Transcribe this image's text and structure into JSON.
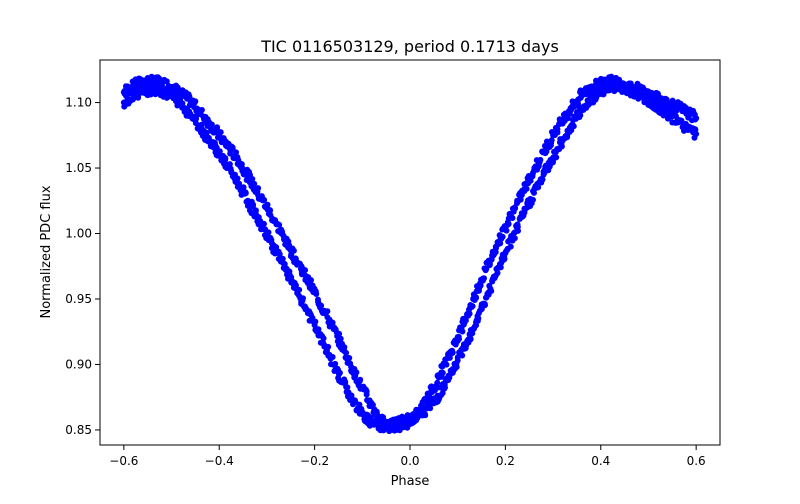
{
  "chart_data": {
    "type": "scatter",
    "title": "TIC 0116503129, period 0.1713 days",
    "xlabel": "Phase",
    "ylabel": "Normalized PDC flux",
    "xlim": [
      -0.65,
      0.65
    ],
    "ylim": [
      0.8385,
      1.1325
    ],
    "x_ticks": [
      -0.6,
      -0.4,
      -0.2,
      0.0,
      0.2,
      0.4,
      0.6
    ],
    "x_tick_labels": [
      "−0.6",
      "−0.4",
      "−0.2",
      "0.0",
      "0.2",
      "0.4",
      "0.6"
    ],
    "y_ticks": [
      0.85,
      0.9,
      0.95,
      1.0,
      1.05,
      1.1
    ],
    "y_tick_labels": [
      "0.85",
      "0.90",
      "0.95",
      "1.00",
      "1.05",
      "1.10"
    ],
    "grid": false,
    "legend": "none",
    "series": [
      {
        "color": "#0000ff",
        "marker": "circle",
        "points": [
          [
            -0.6,
            1.108
          ],
          [
            -0.58,
            1.113
          ],
          [
            -0.56,
            1.116
          ],
          [
            -0.54,
            1.116
          ],
          [
            -0.52,
            1.115
          ],
          [
            -0.5,
            1.112
          ],
          [
            -0.48,
            1.107
          ],
          [
            -0.46,
            1.101
          ],
          [
            -0.44,
            1.093
          ],
          [
            -0.42,
            1.084
          ],
          [
            -0.4,
            1.075
          ],
          [
            -0.38,
            1.066
          ],
          [
            -0.36,
            1.056
          ],
          [
            -0.34,
            1.044
          ],
          [
            -0.32,
            1.032
          ],
          [
            -0.3,
            1.02
          ],
          [
            -0.28,
            1.007
          ],
          [
            -0.26,
            0.994
          ],
          [
            -0.24,
            0.981
          ],
          [
            -0.22,
            0.968
          ],
          [
            -0.2,
            0.955
          ],
          [
            -0.18,
            0.941
          ],
          [
            -0.16,
            0.927
          ],
          [
            -0.14,
            0.912
          ],
          [
            -0.12,
            0.896
          ],
          [
            -0.1,
            0.882
          ],
          [
            -0.08,
            0.868
          ],
          [
            -0.06,
            0.857
          ],
          [
            -0.04,
            0.852
          ],
          [
            -0.02,
            0.853
          ],
          [
            0.0,
            0.857
          ],
          [
            0.02,
            0.864
          ],
          [
            0.04,
            0.876
          ],
          [
            0.06,
            0.89
          ],
          [
            0.08,
            0.905
          ],
          [
            0.1,
            0.921
          ],
          [
            0.12,
            0.938
          ],
          [
            0.14,
            0.956
          ],
          [
            0.16,
            0.973
          ],
          [
            0.18,
            0.99
          ],
          [
            0.2,
            1.005
          ],
          [
            0.22,
            1.02
          ],
          [
            0.24,
            1.034
          ],
          [
            0.26,
            1.048
          ],
          [
            0.28,
            1.062
          ],
          [
            0.3,
            1.075
          ],
          [
            0.32,
            1.087
          ],
          [
            0.34,
            1.097
          ],
          [
            0.36,
            1.106
          ],
          [
            0.38,
            1.112
          ],
          [
            0.4,
            1.115
          ],
          [
            0.42,
            1.116
          ],
          [
            0.44,
            1.115
          ],
          [
            0.46,
            1.113
          ],
          [
            0.48,
            1.11
          ],
          [
            0.5,
            1.106
          ],
          [
            0.52,
            1.103
          ],
          [
            0.54,
            1.1
          ],
          [
            0.56,
            1.097
          ],
          [
            0.58,
            1.093
          ],
          [
            0.6,
            1.088
          ]
        ]
      },
      {
        "color": "#0000ff",
        "marker": "circle",
        "points": [
          [
            -0.6,
            1.1
          ],
          [
            -0.58,
            1.106
          ],
          [
            -0.56,
            1.109
          ],
          [
            -0.54,
            1.11
          ],
          [
            -0.52,
            1.109
          ],
          [
            -0.5,
            1.105
          ],
          [
            -0.48,
            1.099
          ],
          [
            -0.46,
            1.091
          ],
          [
            -0.44,
            1.081
          ],
          [
            -0.42,
            1.071
          ],
          [
            -0.4,
            1.061
          ],
          [
            -0.38,
            1.05
          ],
          [
            -0.36,
            1.038
          ],
          [
            -0.34,
            1.025
          ],
          [
            -0.32,
            1.012
          ],
          [
            -0.3,
            0.999
          ],
          [
            -0.28,
            0.986
          ],
          [
            -0.26,
            0.972
          ],
          [
            -0.24,
            0.958
          ],
          [
            -0.22,
            0.944
          ],
          [
            -0.2,
            0.93
          ],
          [
            -0.18,
            0.915
          ],
          [
            -0.16,
            0.9
          ],
          [
            -0.14,
            0.886
          ],
          [
            -0.12,
            0.872
          ],
          [
            -0.1,
            0.862
          ],
          [
            -0.08,
            0.855
          ],
          [
            -0.06,
            0.853
          ],
          [
            -0.04,
            0.854
          ],
          [
            -0.02,
            0.856
          ],
          [
            0.0,
            0.858
          ],
          [
            0.02,
            0.862
          ],
          [
            0.04,
            0.867
          ],
          [
            0.06,
            0.876
          ],
          [
            0.08,
            0.888
          ],
          [
            0.1,
            0.903
          ],
          [
            0.12,
            0.918
          ],
          [
            0.14,
            0.934
          ],
          [
            0.16,
            0.951
          ],
          [
            0.18,
            0.968
          ],
          [
            0.2,
            0.985
          ],
          [
            0.22,
            1.001
          ],
          [
            0.24,
            1.016
          ],
          [
            0.26,
            1.031
          ],
          [
            0.28,
            1.045
          ],
          [
            0.3,
            1.058
          ],
          [
            0.32,
            1.071
          ],
          [
            0.34,
            1.083
          ],
          [
            0.36,
            1.094
          ],
          [
            0.38,
            1.103
          ],
          [
            0.4,
            1.109
          ],
          [
            0.42,
            1.112
          ],
          [
            0.44,
            1.112
          ],
          [
            0.46,
            1.11
          ],
          [
            0.48,
            1.106
          ],
          [
            0.5,
            1.101
          ],
          [
            0.52,
            1.096
          ],
          [
            0.54,
            1.091
          ],
          [
            0.56,
            1.086
          ],
          [
            0.58,
            1.081
          ],
          [
            0.6,
            1.076
          ]
        ]
      }
    ]
  }
}
